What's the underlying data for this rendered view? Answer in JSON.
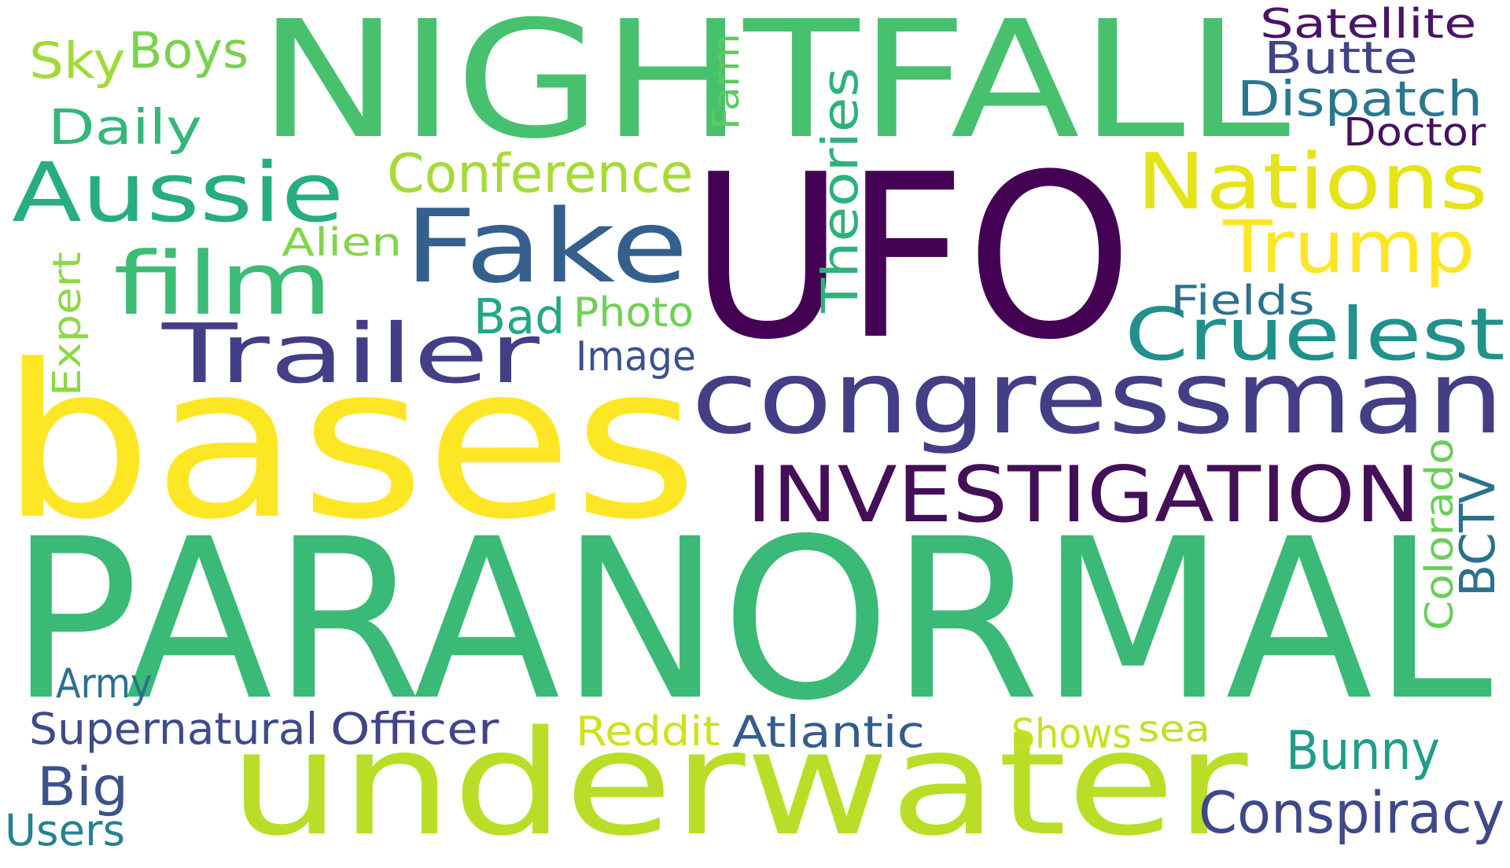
{
  "cloud": {
    "background": "#ffffff",
    "words": [
      {
        "text": "NIGHTFALL",
        "color": "#48c16e",
        "weight": 0.85
      },
      {
        "text": "UFO",
        "color": "#440154",
        "weight": 1.0
      },
      {
        "text": "bases",
        "color": "#fde725",
        "weight": 0.95
      },
      {
        "text": "PARANORMAL",
        "color": "#3aba76",
        "weight": 0.9
      },
      {
        "text": "underwater",
        "color": "#bade28",
        "weight": 0.8
      },
      {
        "text": "congressman",
        "color": "#433e85",
        "weight": 0.55
      },
      {
        "text": "INVESTIGATION",
        "color": "#440f57",
        "weight": 0.45
      },
      {
        "text": "Fake",
        "color": "#355f8d",
        "weight": 0.5
      },
      {
        "text": "Aussie",
        "color": "#27ad81",
        "weight": 0.45
      },
      {
        "text": "film",
        "color": "#3dbc74",
        "weight": 0.45
      },
      {
        "text": "Trailer",
        "color": "#433e85",
        "weight": 0.45
      },
      {
        "text": "Nations",
        "color": "#e5e419",
        "weight": 0.4
      },
      {
        "text": "Trump",
        "color": "#fde725",
        "weight": 0.4
      },
      {
        "text": "Cruelest",
        "color": "#21918c",
        "weight": 0.4
      },
      {
        "text": "Theories",
        "color": "#2db27d",
        "weight": 0.3
      },
      {
        "text": "Conference",
        "color": "#a5db36",
        "weight": 0.25
      },
      {
        "text": "Dispatch",
        "color": "#2a788e",
        "weight": 0.25
      },
      {
        "text": "Butte",
        "color": "#414487",
        "weight": 0.22
      },
      {
        "text": "Satellite",
        "color": "#481467",
        "weight": 0.2
      },
      {
        "text": "Doctor",
        "color": "#471063",
        "weight": 0.18
      },
      {
        "text": "Daily",
        "color": "#35b779",
        "weight": 0.22
      },
      {
        "text": "Sky",
        "color": "#a0da39",
        "weight": 0.22
      },
      {
        "text": "Boys",
        "color": "#7ad151",
        "weight": 0.2
      },
      {
        "text": "Farm",
        "color": "#5ec962",
        "weight": 0.15
      },
      {
        "text": "Alien",
        "color": "#84d44b",
        "weight": 0.15
      },
      {
        "text": "Expert",
        "color": "#8fd744",
        "weight": 0.15
      },
      {
        "text": "Bad",
        "color": "#22a884",
        "weight": 0.22
      },
      {
        "text": "Photo",
        "color": "#70cf57",
        "weight": 0.18
      },
      {
        "text": "Image",
        "color": "#3b528b",
        "weight": 0.18
      },
      {
        "text": "Fields",
        "color": "#2c728e",
        "weight": 0.16
      },
      {
        "text": "BCTV",
        "color": "#2d708e",
        "weight": 0.22
      },
      {
        "text": "Colorado",
        "color": "#6ccd5a",
        "weight": 0.18
      },
      {
        "text": "Army",
        "color": "#2c718e",
        "weight": 0.18
      },
      {
        "text": "Supernatural",
        "color": "#3e4a89",
        "weight": 0.2
      },
      {
        "text": "Officer",
        "color": "#414487",
        "weight": 0.2
      },
      {
        "text": "Reddit",
        "color": "#d0e11c",
        "weight": 0.18
      },
      {
        "text": "Atlantic",
        "color": "#365c8d",
        "weight": 0.2
      },
      {
        "text": "Shows",
        "color": "#c8e020",
        "weight": 0.18
      },
      {
        "text": "sea",
        "color": "#c2df23",
        "weight": 0.16
      },
      {
        "text": "Bunny",
        "color": "#1f9e89",
        "weight": 0.22
      },
      {
        "text": "Big",
        "color": "#3b528b",
        "weight": 0.22
      },
      {
        "text": "Users",
        "color": "#26828e",
        "weight": 0.18
      },
      {
        "text": "Conspiracy",
        "color": "#3e4989",
        "weight": 0.25
      }
    ]
  }
}
